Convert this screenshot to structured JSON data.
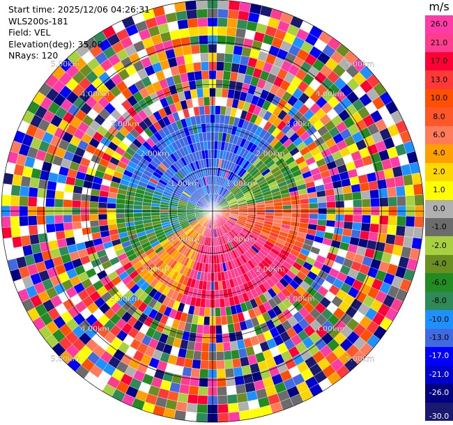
{
  "info": {
    "start_time": "Start time: 2025/12/06 04:26:31",
    "instrument": "WLS200s-181",
    "field": "Field: VEL",
    "elevation": "Elevation(deg): 35.00",
    "nrays": "NRays: 120"
  },
  "colorbar": {
    "unit": "m/s",
    "ticks": [
      "26.0",
      "21.0",
      "17.0",
      "13.0",
      "10.0",
      "8.0",
      "6.0",
      "4.0",
      "2.0",
      "1.0",
      "0.0",
      "-1.0",
      "-2.0",
      "-4.0",
      "-6.0",
      "-8.0",
      "-10.0",
      "-13.0",
      "-17.0",
      "-21.0",
      "-26.0",
      "-30.0"
    ],
    "colors": [
      "#ff3ba7",
      "#ff3d8f",
      "#ff0036",
      "#ff3838",
      "#ff4f00",
      "#ff5728",
      "#ff7b5a",
      "#ffa000",
      "#ffd700",
      "#ffff00",
      "#b0b0b0",
      "#6c6c6c",
      "#a8d040",
      "#6b8e23",
      "#228b22",
      "#2e8b57",
      "#1e90ff",
      "#4169e1",
      "#0000ff",
      "#0000cd",
      "#000080",
      "#191970"
    ]
  },
  "chart_data": {
    "type": "heatmap",
    "projection": "polar PPI",
    "field": "VEL",
    "units": "m/s",
    "nrays": 120,
    "elevation_deg": 35.0,
    "range_rings_km": [
      1.0,
      2.0,
      3.0,
      4.0,
      5.0
    ],
    "ring_labels": [
      "1.00km",
      "2.00km",
      "3.00km",
      "4.00km",
      "5.00km"
    ],
    "max_range_km": 5.0,
    "velocity_range": [
      -30.0,
      26.0
    ],
    "pattern": {
      "clean_radius_km": 2.1,
      "noise_start_km": 2.1,
      "sectors": [
        {
          "azimuth_from_deg": 290,
          "azimuth_to_deg": 40,
          "dominant_velocity": -15
        },
        {
          "azimuth_from_deg": 40,
          "azimuth_to_deg": 80,
          "dominant_velocity": -6
        },
        {
          "azimuth_from_deg": 80,
          "azimuth_to_deg": 120,
          "dominant_velocity": 8
        },
        {
          "azimuth_from_deg": 120,
          "azimuth_to_deg": 200,
          "dominant_velocity": 18
        },
        {
          "azimuth_from_deg": 200,
          "azimuth_to_deg": 240,
          "dominant_velocity": 4
        },
        {
          "azimuth_from_deg": 240,
          "azimuth_to_deg": 290,
          "dominant_velocity": -8
        }
      ]
    }
  }
}
